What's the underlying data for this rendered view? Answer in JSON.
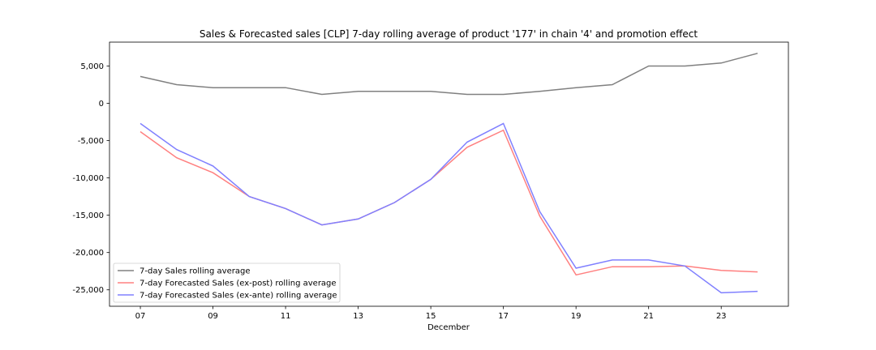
{
  "chart_data": {
    "type": "line",
    "title": "Sales & Forecasted sales [CLP] 7-day rolling average of product '177' in chain '4' and promotion effect",
    "xlabel": "December",
    "ylabel": "",
    "x": [
      7,
      8,
      9,
      10,
      11,
      12,
      13,
      14,
      15,
      16,
      17,
      18,
      19,
      20,
      21,
      22,
      23,
      24
    ],
    "x_ticks": [
      7,
      9,
      11,
      13,
      15,
      17,
      19,
      21,
      23
    ],
    "x_tick_labels": [
      "07",
      "09",
      "11",
      "13",
      "15",
      "17",
      "19",
      "21",
      "23"
    ],
    "xlim": [
      6.15,
      24.85
    ],
    "y_ticks": [
      5000,
      0,
      -5000,
      -10000,
      -15000,
      -20000,
      -25000
    ],
    "y_tick_labels": [
      "5,000",
      "0",
      "-5,000",
      "-10,000",
      "-15,000",
      "-20,000",
      "-25,000"
    ],
    "ylim": [
      -27200,
      8200
    ],
    "grid": false,
    "legend_position": "lower-left",
    "series": [
      {
        "name": "7-day Sales rolling average",
        "color": "#808080",
        "values": [
          3600,
          2500,
          2100,
          2100,
          2100,
          1200,
          1600,
          1600,
          1600,
          1200,
          1200,
          1600,
          2100,
          2500,
          5000,
          5000,
          5400,
          6700
        ]
      },
      {
        "name": "7-day Forecasted Sales (ex-post) rolling average",
        "color": "#ff8080",
        "values": [
          -3800,
          -7300,
          -9300,
          -12500,
          -14100,
          -16300,
          -15500,
          -13300,
          -10200,
          -5900,
          -3600,
          -15100,
          -23000,
          -21900,
          -21900,
          -21800,
          -22400,
          -22600
        ]
      },
      {
        "name": "7-day Forecasted Sales (ex-ante) rolling average",
        "color": "#8080ff",
        "values": [
          -2700,
          -6200,
          -8400,
          -12500,
          -14100,
          -16300,
          -15500,
          -13300,
          -10200,
          -5200,
          -2700,
          -14500,
          -22100,
          -21000,
          -21000,
          -21800,
          -25400,
          -25200
        ]
      }
    ]
  }
}
